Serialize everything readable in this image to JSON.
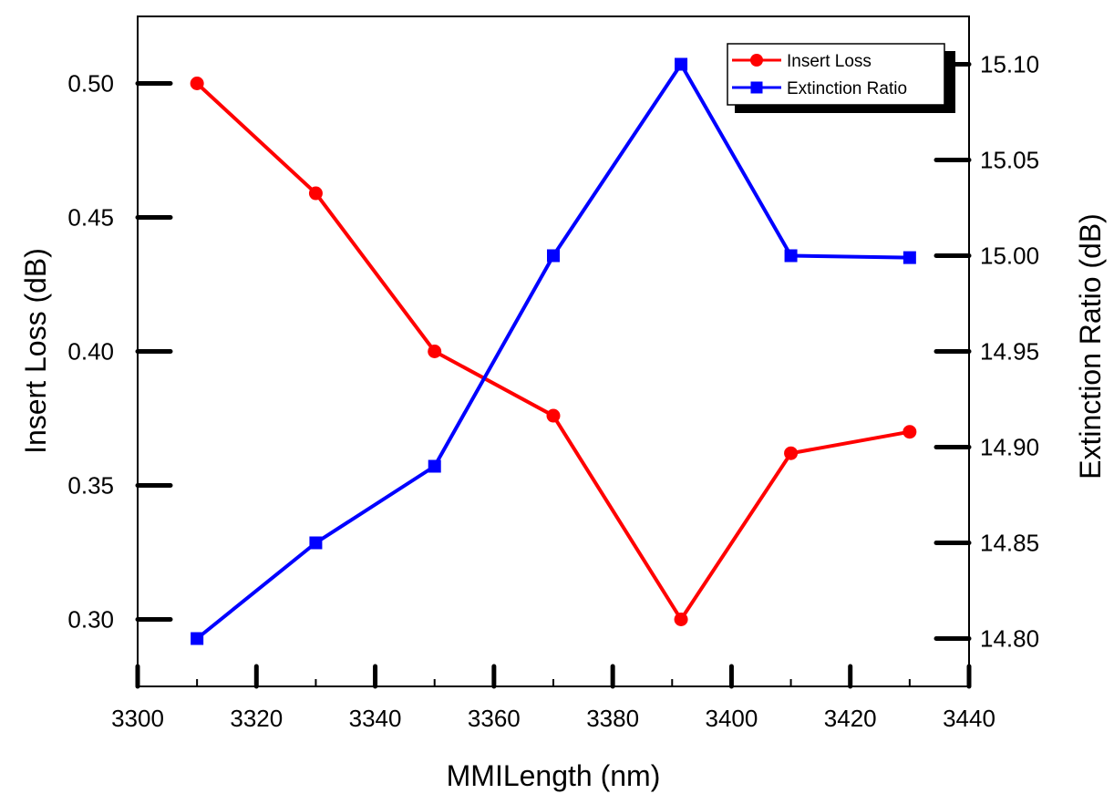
{
  "chart_data": {
    "type": "line",
    "xlabel": "MMILength (nm)",
    "ylabel_left": "Insert Loss (dB)",
    "ylabel_right": "Extinction Ratio (dB)",
    "xlim": [
      3300,
      3440
    ],
    "ylim_left": [
      0.275,
      0.525
    ],
    "ylim_right": [
      14.775,
      15.125
    ],
    "x_ticks": [
      "3300",
      "3320",
      "3340",
      "3360",
      "3380",
      "3400",
      "3420",
      "3440"
    ],
    "y_left_ticks": [
      "0.30",
      "0.35",
      "0.40",
      "0.45",
      "0.50"
    ],
    "y_right_ticks": [
      "14.80",
      "14.85",
      "14.90",
      "14.95",
      "15.00",
      "15.05",
      "15.10"
    ],
    "grid": false,
    "legend_position": "top-right",
    "series": [
      {
        "name": "Insert Loss",
        "axis": "left",
        "color": "#ff0000",
        "marker": "circle",
        "x": [
          3310,
          3330,
          3350,
          3370,
          3391.5,
          3410,
          3430
        ],
        "values": [
          0.5,
          0.459,
          0.4,
          0.376,
          0.3,
          0.362,
          0.37
        ]
      },
      {
        "name": "Extinction Ratio",
        "axis": "right",
        "color": "#0000ff",
        "marker": "square",
        "x": [
          3310,
          3330,
          3350,
          3370,
          3391.5,
          3410,
          3430
        ],
        "values": [
          14.8,
          14.85,
          14.89,
          15.0,
          15.1,
          15.0,
          14.999
        ]
      }
    ]
  }
}
